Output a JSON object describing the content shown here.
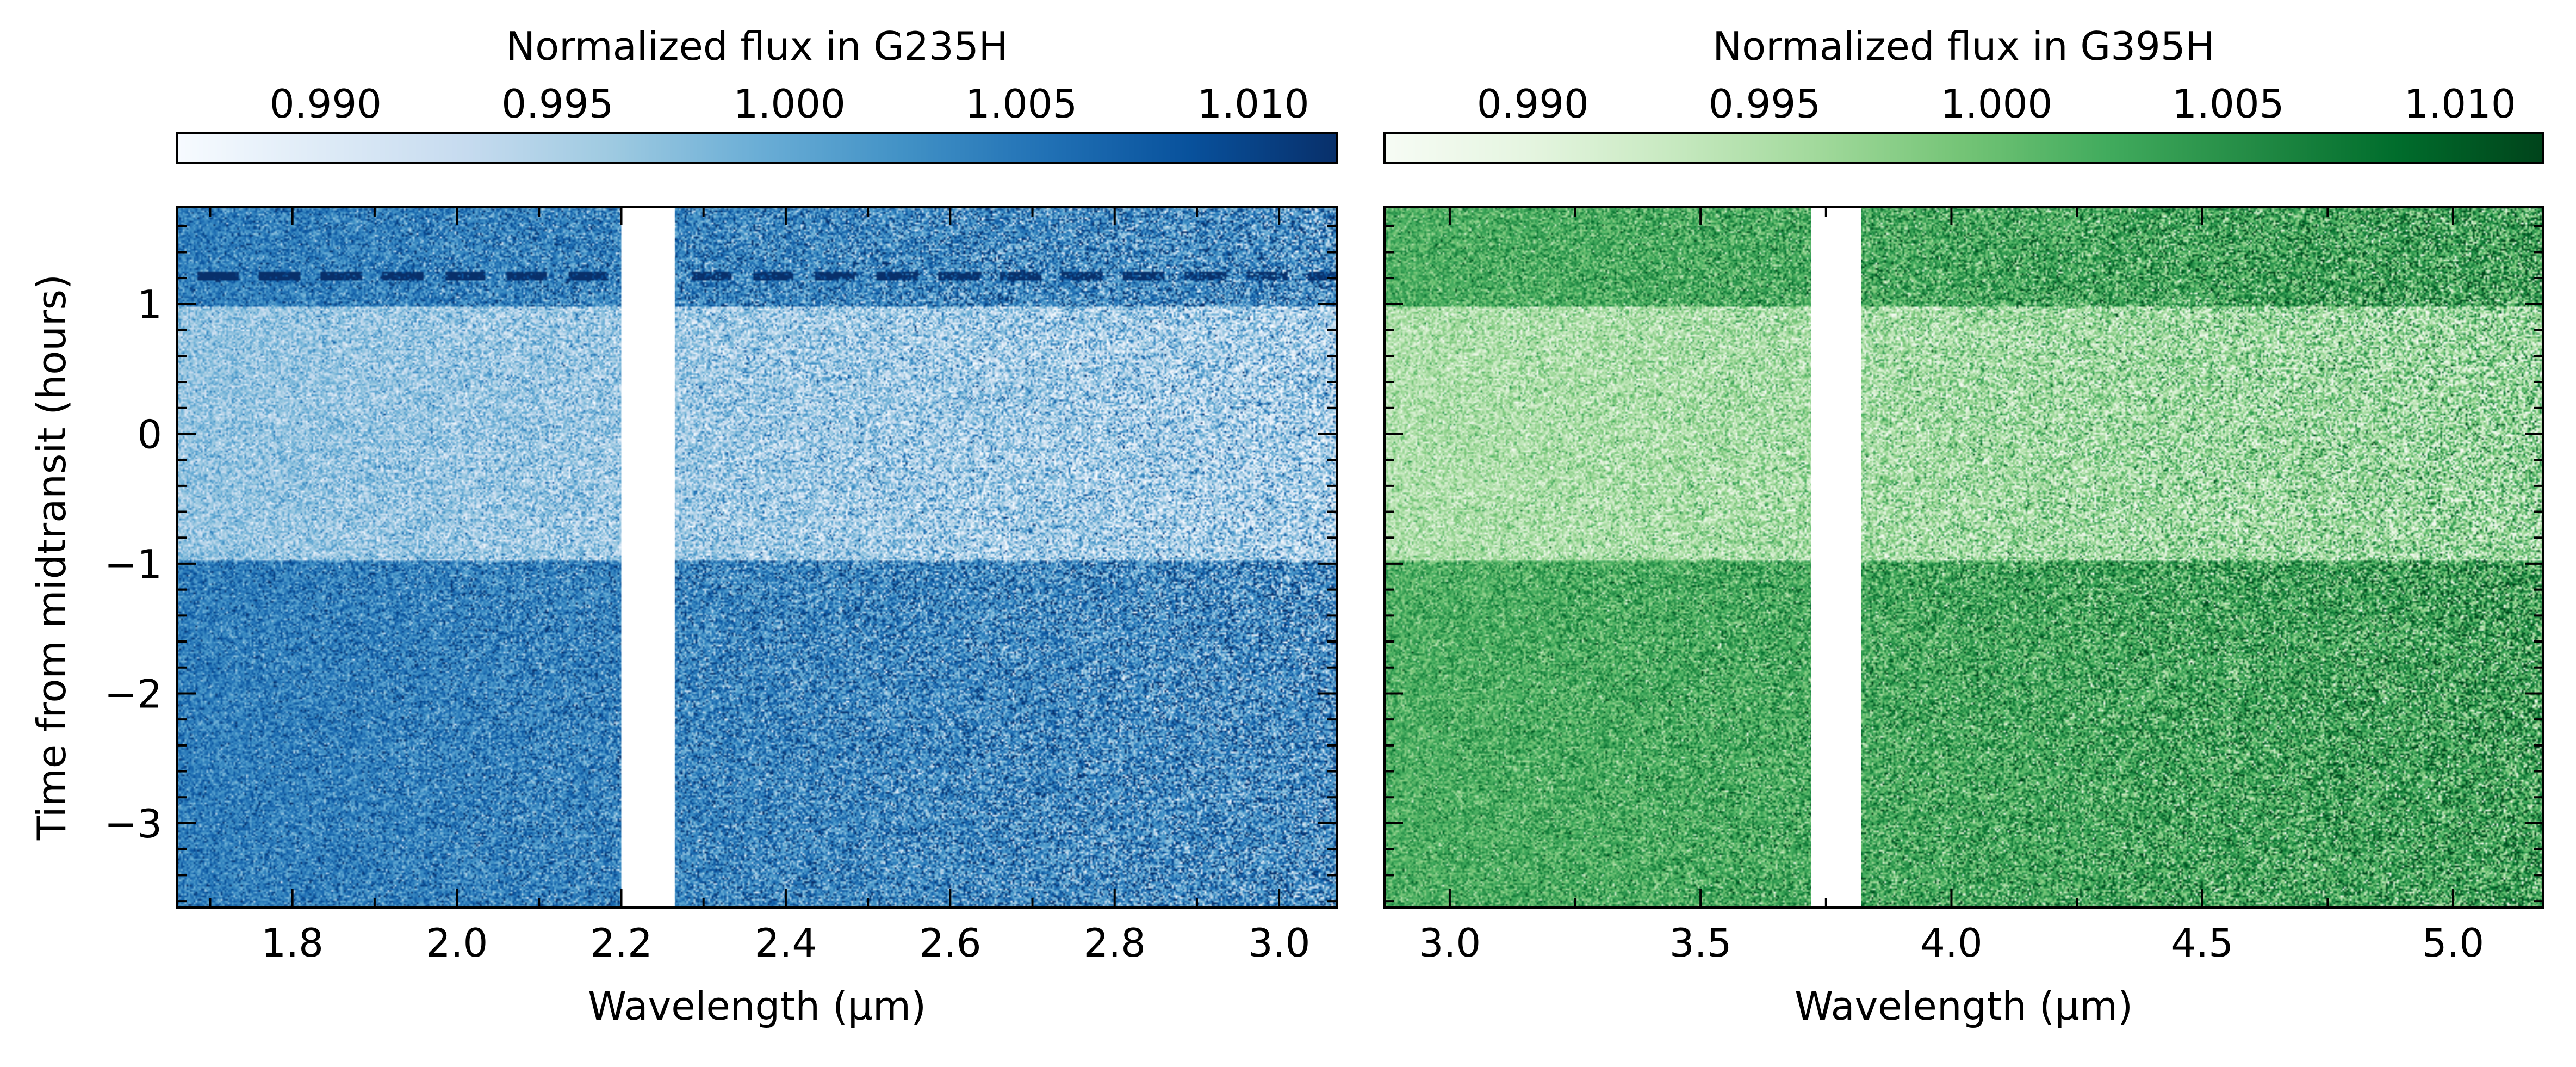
{
  "chart_data": [
    {
      "type": "heatmap",
      "colorbar_label": "Normalized flux in G235H",
      "colorbar_ticks": [
        "0.990",
        "0.995",
        "1.000",
        "1.005",
        "1.010"
      ],
      "colorbar_tick_values": [
        0.99,
        0.995,
        1.0,
        1.005,
        1.01
      ],
      "clim": [
        0.9868,
        1.0118
      ],
      "colormap": "Blues",
      "colormap_colors": [
        "#f7fbff",
        "#deebf7",
        "#c6dbef",
        "#9ecae1",
        "#6baed6",
        "#4292c6",
        "#2171b5",
        "#08519c",
        "#08306b"
      ],
      "xlabel": "Wavelength (μm)",
      "ylabel": "Time from midtransit (hours)",
      "xlim": [
        1.66,
        3.07
      ],
      "ylim": [
        -3.65,
        1.75
      ],
      "x_ticks": [
        "1.8",
        "2.0",
        "2.2",
        "2.4",
        "2.6",
        "2.8",
        "3.0"
      ],
      "x_tick_values": [
        1.8,
        2.0,
        2.2,
        2.4,
        2.6,
        2.8,
        3.0
      ],
      "y_ticks": [
        "−3",
        "−2",
        "−1",
        "0",
        "1"
      ],
      "y_tick_values": [
        -3,
        -2,
        -1,
        0,
        1
      ],
      "detector_gap": [
        2.2,
        2.265
      ],
      "transit_window": [
        -0.98,
        0.98
      ],
      "out_of_transit_flux": 1.0035,
      "in_transit_flux": 0.9958,
      "flux_slope_per_um": -0.0012,
      "artifact_row_time": 1.22
    },
    {
      "type": "heatmap",
      "colorbar_label": "Normalized flux in G395H",
      "colorbar_ticks": [
        "0.990",
        "0.995",
        "1.000",
        "1.005",
        "1.010"
      ],
      "colorbar_tick_values": [
        0.99,
        0.995,
        1.0,
        1.005,
        1.01
      ],
      "clim": [
        0.9868,
        1.0118
      ],
      "colormap": "Greens",
      "colormap_colors": [
        "#f7fcf5",
        "#e5f5e0",
        "#c7e9c0",
        "#a1d99b",
        "#74c476",
        "#41ab5d",
        "#238b45",
        "#006d2c",
        "#00441b"
      ],
      "xlabel": "Wavelength (μm)",
      "ylabel": "",
      "xlim": [
        2.87,
        5.18
      ],
      "ylim": [
        -3.65,
        1.75
      ],
      "x_ticks": [
        "3.0",
        "3.5",
        "4.0",
        "4.5",
        "5.0"
      ],
      "x_tick_values": [
        3.0,
        3.5,
        4.0,
        4.5,
        5.0
      ],
      "y_ticks": [],
      "y_tick_values": [
        -3,
        -2,
        -1,
        0,
        1
      ],
      "detector_gap": [
        3.72,
        3.82
      ],
      "transit_window": [
        -0.98,
        0.98
      ],
      "out_of_transit_flux": 1.0025,
      "in_transit_flux": 0.9955,
      "flux_slope_per_um": 0.0006,
      "artifact_row_time": null
    }
  ]
}
